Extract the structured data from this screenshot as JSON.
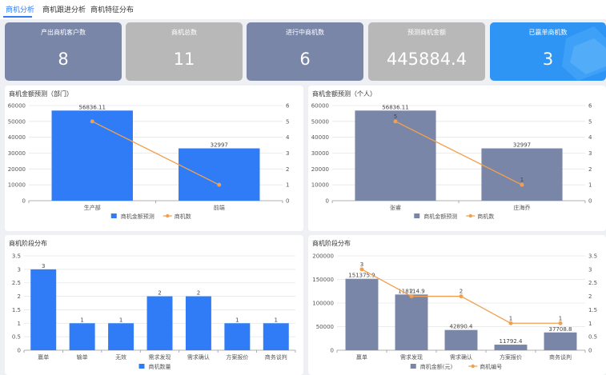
{
  "tabs": [
    {
      "label": "商机分析",
      "active": true
    },
    {
      "label": "商机跟进分析",
      "active": false
    },
    {
      "label": "商机特征分布",
      "active": false
    }
  ],
  "kpis": [
    {
      "title": "产出商机客户数",
      "value": "8",
      "color": "#7a86a8"
    },
    {
      "title": "商机总数",
      "value": "11",
      "color": "#b8b8b8"
    },
    {
      "title": "进行中商机数",
      "value": "6",
      "color": "#7a86a8"
    },
    {
      "title": "预测商机金额",
      "value": "445884.4",
      "color": "#b8b8b8"
    },
    {
      "title": "已赢单商机数",
      "value": "3",
      "color": "#2f95f5"
    }
  ],
  "panels": {
    "dept": {
      "title": "商机金额预测（部门）"
    },
    "person": {
      "title": "商机金额预测（个人）"
    },
    "stage1": {
      "title": "商机阶段分布"
    },
    "stage2": {
      "title": "商机阶段分布"
    }
  },
  "chart_data": [
    {
      "id": "dept",
      "type": "bar",
      "categories": [
        "生产部",
        "前端"
      ],
      "series": [
        {
          "name": "商机金额预测",
          "kind": "bar",
          "axis": "left",
          "values": [
            56836.11,
            32997
          ],
          "labels": [
            "56836.11",
            "32997"
          ],
          "color": "#2f7cf6"
        },
        {
          "name": "商机数",
          "kind": "line",
          "axis": "right",
          "values": [
            5,
            1
          ],
          "labels": [
            "",
            ""
          ],
          "color": "#f0a050"
        }
      ],
      "yleft": {
        "min": 0,
        "max": 60000,
        "ticks": [
          0,
          10000,
          20000,
          30000,
          40000,
          50000,
          60000
        ]
      },
      "yright": {
        "min": 0,
        "max": 6,
        "ticks": [
          0,
          1,
          2,
          3,
          4,
          5,
          6
        ]
      },
      "grid": true,
      "legend": "bottom"
    },
    {
      "id": "person",
      "type": "bar",
      "categories": [
        "张睿",
        "庄海乔"
      ],
      "series": [
        {
          "name": "商机金额预测",
          "kind": "bar",
          "axis": "left",
          "values": [
            56836.11,
            32997
          ],
          "labels": [
            "56836.11",
            "32997"
          ],
          "color": "#7a86a8"
        },
        {
          "name": "商机数",
          "kind": "line",
          "axis": "right",
          "values": [
            5,
            1
          ],
          "labels": [
            "5",
            "1"
          ],
          "color": "#f0a050"
        }
      ],
      "yleft": {
        "min": 0,
        "max": 60000,
        "ticks": [
          0,
          10000,
          20000,
          30000,
          40000,
          50000,
          60000
        ]
      },
      "yright": {
        "min": 0,
        "max": 6,
        "ticks": [
          0,
          1,
          2,
          3,
          4,
          5,
          6
        ]
      },
      "grid": true,
      "legend": "bottom"
    },
    {
      "id": "stage1",
      "type": "bar",
      "categories": [
        "赢单",
        "输单",
        "无效",
        "需求发现",
        "需求确认",
        "方案报价",
        "商务谈判"
      ],
      "series": [
        {
          "name": "商机数量",
          "kind": "bar",
          "axis": "left",
          "values": [
            3,
            1,
            1,
            2,
            2,
            1,
            1
          ],
          "labels": [
            "3",
            "1",
            "1",
            "2",
            "2",
            "1",
            "1"
          ],
          "color": "#2f7cf6"
        }
      ],
      "yleft": {
        "min": 0,
        "max": 3.5,
        "ticks": [
          0,
          0.5,
          1,
          1.5,
          2,
          2.5,
          3,
          3.5
        ]
      },
      "grid": true,
      "legend": "bottom"
    },
    {
      "id": "stage2",
      "type": "bar",
      "categories": [
        "赢单",
        "需求发现",
        "需求确认",
        "方案报价",
        "商务谈判"
      ],
      "series": [
        {
          "name": "商机金额(元)",
          "kind": "bar",
          "axis": "left",
          "values": [
            151375.9,
            118114.9,
            42890.4,
            11792.4,
            37708.8
          ],
          "labels": [
            "151375.9",
            "118114.9",
            "42890.4",
            "11792.4",
            "37708.8"
          ],
          "color": "#7a86a8"
        },
        {
          "name": "商机编号",
          "kind": "line",
          "axis": "right",
          "values": [
            3,
            2,
            2,
            1,
            1
          ],
          "labels": [
            "3",
            "2",
            "2",
            "1",
            "1"
          ],
          "color": "#f0a050"
        }
      ],
      "yleft": {
        "min": 0,
        "max": 200000,
        "ticks": [
          0,
          50000,
          100000,
          150000,
          200000
        ]
      },
      "yright": {
        "min": 0,
        "max": 3.5,
        "ticks": [
          0,
          0.5,
          1,
          1.5,
          2,
          2.5,
          3,
          3.5
        ]
      },
      "grid": true,
      "legend": "bottom"
    }
  ]
}
